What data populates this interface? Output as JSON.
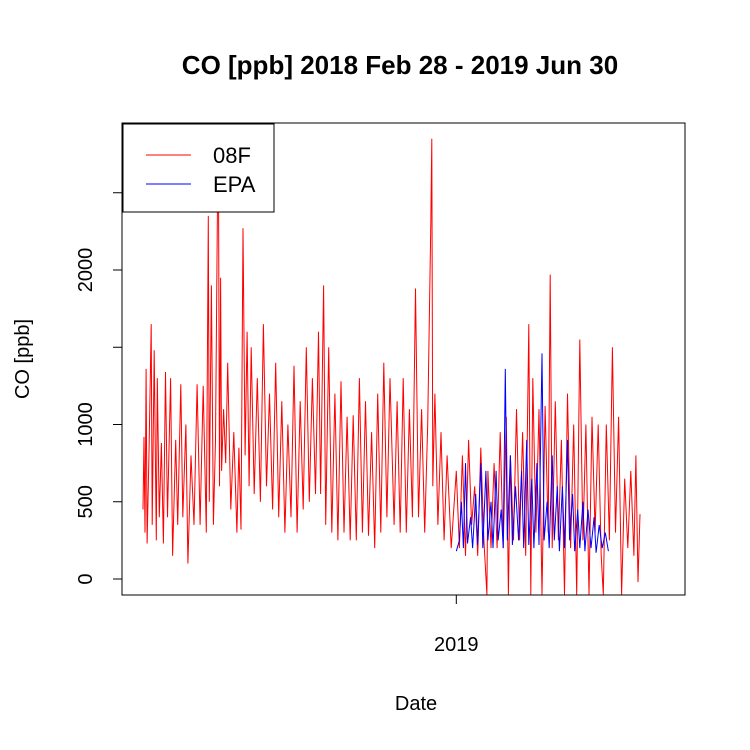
{
  "chart_data": {
    "type": "line",
    "title": "CO [ppb] 2018 Feb 28 - 2019 Jun 30",
    "xlabel": "Date",
    "ylabel": "CO [ppb]",
    "x_range": [
      "2018-02-28",
      "2019-06-30"
    ],
    "x_ticks": [
      {
        "value": "2019-01-01",
        "label": "2019"
      }
    ],
    "y_ticks": [
      0,
      500,
      1000,
      1500,
      2000,
      2500
    ],
    "y_tick_labels": [
      "0",
      "500",
      "1000",
      "",
      "2000",
      ""
    ],
    "ylim": [
      -100,
      2950
    ],
    "legend": {
      "position": "top-left",
      "entries": [
        "08F",
        "EPA"
      ]
    },
    "grid": false,
    "series": [
      {
        "name": "08F",
        "color": "#ff0000",
        "points": [
          [
            "2018-02-28",
            450
          ],
          [
            "2018-03-01",
            920
          ],
          [
            "2018-03-02",
            300
          ],
          [
            "2018-03-03",
            1360
          ],
          [
            "2018-03-04",
            230
          ],
          [
            "2018-03-06",
            850
          ],
          [
            "2018-03-08",
            1650
          ],
          [
            "2018-03-09",
            350
          ],
          [
            "2018-03-11",
            1480
          ],
          [
            "2018-03-13",
            250
          ],
          [
            "2018-03-14",
            1300
          ],
          [
            "2018-03-16",
            400
          ],
          [
            "2018-03-18",
            880
          ],
          [
            "2018-03-20",
            230
          ],
          [
            "2018-03-22",
            1340
          ],
          [
            "2018-03-24",
            400
          ],
          [
            "2018-03-27",
            1300
          ],
          [
            "2018-03-29",
            150
          ],
          [
            "2018-04-01",
            900
          ],
          [
            "2018-04-03",
            350
          ],
          [
            "2018-04-06",
            1260
          ],
          [
            "2018-04-08",
            400
          ],
          [
            "2018-04-11",
            1000
          ],
          [
            "2018-04-13",
            100
          ],
          [
            "2018-04-16",
            800
          ],
          [
            "2018-04-19",
            350
          ],
          [
            "2018-04-22",
            1260
          ],
          [
            "2018-04-25",
            350
          ],
          [
            "2018-04-28",
            1250
          ],
          [
            "2018-05-01",
            300
          ],
          [
            "2018-05-03",
            2350
          ],
          [
            "2018-05-04",
            500
          ],
          [
            "2018-05-06",
            1900
          ],
          [
            "2018-05-08",
            350
          ],
          [
            "2018-05-10",
            900
          ],
          [
            "2018-05-12",
            2450
          ],
          [
            "2018-05-13",
            2580
          ],
          [
            "2018-05-14",
            600
          ],
          [
            "2018-05-15",
            1950
          ],
          [
            "2018-05-16",
            700
          ],
          [
            "2018-05-18",
            1100
          ],
          [
            "2018-05-20",
            750
          ],
          [
            "2018-05-22",
            1400
          ],
          [
            "2018-05-25",
            450
          ],
          [
            "2018-05-28",
            950
          ],
          [
            "2018-05-31",
            300
          ],
          [
            "2018-06-02",
            850
          ],
          [
            "2018-06-04",
            320
          ],
          [
            "2018-06-06",
            2270
          ],
          [
            "2018-06-08",
            800
          ],
          [
            "2018-06-10",
            1600
          ],
          [
            "2018-06-12",
            600
          ],
          [
            "2018-06-14",
            1500
          ],
          [
            "2018-06-17",
            550
          ],
          [
            "2018-06-20",
            1300
          ],
          [
            "2018-06-23",
            500
          ],
          [
            "2018-06-26",
            1650
          ],
          [
            "2018-06-29",
            600
          ],
          [
            "2018-07-02",
            1200
          ],
          [
            "2018-07-05",
            450
          ],
          [
            "2018-07-08",
            1400
          ],
          [
            "2018-07-11",
            400
          ],
          [
            "2018-07-14",
            1150
          ],
          [
            "2018-07-17",
            300
          ],
          [
            "2018-07-20",
            1000
          ],
          [
            "2018-07-23",
            400
          ],
          [
            "2018-07-26",
            1380
          ],
          [
            "2018-07-29",
            300
          ],
          [
            "2018-08-01",
            1150
          ],
          [
            "2018-08-04",
            450
          ],
          [
            "2018-08-07",
            1500
          ],
          [
            "2018-08-10",
            500
          ],
          [
            "2018-08-13",
            1300
          ],
          [
            "2018-08-16",
            550
          ],
          [
            "2018-08-19",
            1600
          ],
          [
            "2018-08-21",
            550
          ],
          [
            "2018-08-24",
            1900
          ],
          [
            "2018-08-26",
            350
          ],
          [
            "2018-08-29",
            1500
          ],
          [
            "2018-09-01",
            300
          ],
          [
            "2018-09-04",
            1200
          ],
          [
            "2018-09-07",
            250
          ],
          [
            "2018-09-10",
            1280
          ],
          [
            "2018-09-13",
            300
          ],
          [
            "2018-09-16",
            1050
          ],
          [
            "2018-09-19",
            250
          ],
          [
            "2018-09-22",
            1060
          ],
          [
            "2018-09-25",
            250
          ],
          [
            "2018-09-28",
            1300
          ],
          [
            "2018-10-01",
            300
          ],
          [
            "2018-10-04",
            1150
          ],
          [
            "2018-10-07",
            280
          ],
          [
            "2018-10-10",
            950
          ],
          [
            "2018-10-13",
            200
          ],
          [
            "2018-10-16",
            1200
          ],
          [
            "2018-10-19",
            300
          ],
          [
            "2018-10-22",
            1400
          ],
          [
            "2018-10-25",
            400
          ],
          [
            "2018-10-28",
            1300
          ],
          [
            "2018-11-01",
            350
          ],
          [
            "2018-11-04",
            1150
          ],
          [
            "2018-11-07",
            300
          ],
          [
            "2018-11-10",
            1300
          ],
          [
            "2018-11-13",
            300
          ],
          [
            "2018-11-16",
            1100
          ],
          [
            "2018-11-19",
            400
          ],
          [
            "2018-11-22",
            1880
          ],
          [
            "2018-11-25",
            400
          ],
          [
            "2018-11-28",
            1100
          ],
          [
            "2018-12-01",
            300
          ],
          [
            "2018-12-04",
            1000
          ],
          [
            "2018-12-07",
            2300
          ],
          [
            "2018-12-08",
            2850
          ],
          [
            "2018-12-09",
            600
          ],
          [
            "2018-12-11",
            1200
          ],
          [
            "2018-12-14",
            350
          ],
          [
            "2018-12-17",
            950
          ],
          [
            "2018-12-20",
            250
          ],
          [
            "2018-12-23",
            800
          ],
          [
            "2018-12-27",
            200
          ],
          [
            "2019-01-01",
            700
          ],
          [
            "2019-01-04",
            200
          ],
          [
            "2019-01-07",
            800
          ],
          [
            "2019-01-10",
            150
          ],
          [
            "2019-01-13",
            900
          ],
          [
            "2019-01-16",
            350
          ],
          [
            "2019-01-19",
            600
          ],
          [
            "2019-01-22",
            150
          ],
          [
            "2019-01-25",
            850
          ],
          [
            "2019-01-28",
            250
          ],
          [
            "2019-01-31",
            -100
          ],
          [
            "2019-02-01",
            700
          ],
          [
            "2019-02-04",
            200
          ],
          [
            "2019-02-07",
            750
          ],
          [
            "2019-02-10",
            200
          ],
          [
            "2019-02-13",
            950
          ],
          [
            "2019-02-16",
            200
          ],
          [
            "2019-02-19",
            1050
          ],
          [
            "2019-02-21",
            -100
          ],
          [
            "2019-02-23",
            800
          ],
          [
            "2019-02-26",
            250
          ],
          [
            "2019-03-01",
            1100
          ],
          [
            "2019-03-04",
            250
          ],
          [
            "2019-03-07",
            950
          ],
          [
            "2019-03-10",
            150
          ],
          [
            "2019-03-13",
            1650
          ],
          [
            "2019-03-15",
            -100
          ],
          [
            "2019-03-17",
            1300
          ],
          [
            "2019-03-20",
            300
          ],
          [
            "2019-03-23",
            1100
          ],
          [
            "2019-03-26",
            -100
          ],
          [
            "2019-03-29",
            1120
          ],
          [
            "2019-04-01",
            300
          ],
          [
            "2019-04-03",
            1970
          ],
          [
            "2019-04-05",
            200
          ],
          [
            "2019-04-08",
            1150
          ],
          [
            "2019-04-11",
            250
          ],
          [
            "2019-04-14",
            900
          ],
          [
            "2019-04-17",
            -100
          ],
          [
            "2019-04-20",
            1200
          ],
          [
            "2019-04-23",
            200
          ],
          [
            "2019-04-26",
            1000
          ],
          [
            "2019-04-29",
            -100
          ],
          [
            "2019-05-02",
            1550
          ],
          [
            "2019-05-05",
            250
          ],
          [
            "2019-05-08",
            1000
          ],
          [
            "2019-05-11",
            -100
          ],
          [
            "2019-05-14",
            1050
          ],
          [
            "2019-05-17",
            300
          ],
          [
            "2019-05-20",
            1000
          ],
          [
            "2019-05-23",
            150
          ],
          [
            "2019-05-25",
            -100
          ],
          [
            "2019-05-28",
            1000
          ],
          [
            "2019-05-31",
            250
          ],
          [
            "2019-06-03",
            1500
          ],
          [
            "2019-06-06",
            300
          ],
          [
            "2019-06-09",
            1050
          ],
          [
            "2019-06-12",
            -100
          ],
          [
            "2019-06-15",
            650
          ],
          [
            "2019-06-18",
            200
          ],
          [
            "2019-06-21",
            700
          ],
          [
            "2019-06-24",
            150
          ],
          [
            "2019-06-26",
            800
          ],
          [
            "2019-06-28",
            -20
          ],
          [
            "2019-06-30",
            420
          ]
        ]
      },
      {
        "name": "EPA",
        "color": "#0000ff",
        "points": [
          [
            "2019-01-01",
            180
          ],
          [
            "2019-01-04",
            250
          ],
          [
            "2019-01-06",
            500
          ],
          [
            "2019-01-08",
            200
          ],
          [
            "2019-01-10",
            750
          ],
          [
            "2019-01-12",
            230
          ],
          [
            "2019-01-15",
            400
          ],
          [
            "2019-01-17",
            200
          ],
          [
            "2019-01-20",
            550
          ],
          [
            "2019-01-22",
            220
          ],
          [
            "2019-01-25",
            750
          ],
          [
            "2019-01-27",
            200
          ],
          [
            "2019-01-30",
            700
          ],
          [
            "2019-02-01",
            250
          ],
          [
            "2019-02-04",
            500
          ],
          [
            "2019-02-06",
            200
          ],
          [
            "2019-02-09",
            700
          ],
          [
            "2019-02-11",
            250
          ],
          [
            "2019-02-14",
            450
          ],
          [
            "2019-02-16",
            200
          ],
          [
            "2019-02-18",
            1360
          ],
          [
            "2019-02-20",
            250
          ],
          [
            "2019-02-23",
            800
          ],
          [
            "2019-02-25",
            220
          ],
          [
            "2019-02-28",
            600
          ],
          [
            "2019-03-03",
            250
          ],
          [
            "2019-03-06",
            700
          ],
          [
            "2019-03-08",
            200
          ],
          [
            "2019-03-11",
            900
          ],
          [
            "2019-03-13",
            220
          ],
          [
            "2019-03-16",
            650
          ],
          [
            "2019-03-18",
            200
          ],
          [
            "2019-03-21",
            750
          ],
          [
            "2019-03-23",
            220
          ],
          [
            "2019-03-26",
            1460
          ],
          [
            "2019-03-28",
            250
          ],
          [
            "2019-03-31",
            500
          ],
          [
            "2019-04-02",
            200
          ],
          [
            "2019-04-05",
            800
          ],
          [
            "2019-04-07",
            250
          ],
          [
            "2019-04-10",
            600
          ],
          [
            "2019-04-12",
            180
          ],
          [
            "2019-04-15",
            600
          ],
          [
            "2019-04-17",
            200
          ],
          [
            "2019-04-20",
            900
          ],
          [
            "2019-04-22",
            250
          ],
          [
            "2019-04-25",
            550
          ],
          [
            "2019-04-27",
            180
          ],
          [
            "2019-04-30",
            450
          ],
          [
            "2019-05-02",
            200
          ],
          [
            "2019-05-05",
            500
          ],
          [
            "2019-05-07",
            180
          ],
          [
            "2019-05-10",
            450
          ],
          [
            "2019-05-13",
            200
          ],
          [
            "2019-05-16",
            400
          ],
          [
            "2019-05-18",
            170
          ],
          [
            "2019-05-21",
            350
          ],
          [
            "2019-05-24",
            200
          ],
          [
            "2019-05-27",
            300
          ],
          [
            "2019-05-30",
            180
          ]
        ]
      }
    ]
  }
}
